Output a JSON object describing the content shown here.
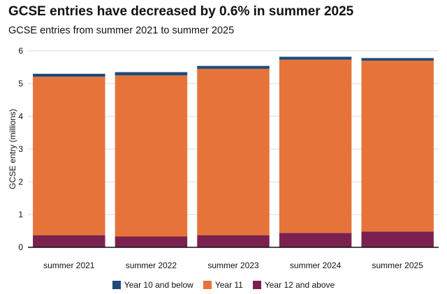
{
  "title": "GCSE entries have decreased by 0.6% in summer 2025",
  "subtitle": "GCSE entries from summer 2021 to summer 2025",
  "chart_data": {
    "type": "bar",
    "stacked": true,
    "categories": [
      "summer 2021",
      "summer 2022",
      "summer 2023",
      "summer 2024",
      "summer 2025"
    ],
    "series": [
      {
        "name": "Year 12 and above",
        "color": "#7b2150",
        "values": [
          0.37,
          0.33,
          0.37,
          0.44,
          0.48
        ]
      },
      {
        "name": "Year 11",
        "color": "#e6743a",
        "values": [
          4.84,
          4.92,
          5.08,
          5.29,
          5.22
        ]
      },
      {
        "name": "Year 10 and below",
        "color": "#1f4a7a",
        "values": [
          0.09,
          0.1,
          0.09,
          0.09,
          0.08
        ]
      }
    ],
    "ylabel": "GCSE entry (millions)",
    "xlabel": "",
    "ylim": [
      0,
      6
    ],
    "yticks": [
      0,
      1,
      2,
      3,
      4,
      5,
      6
    ],
    "grid": true,
    "legend": {
      "position": "bottom",
      "entries": [
        "Year 10 and below",
        "Year 11",
        "Year 12 and above"
      ]
    }
  }
}
